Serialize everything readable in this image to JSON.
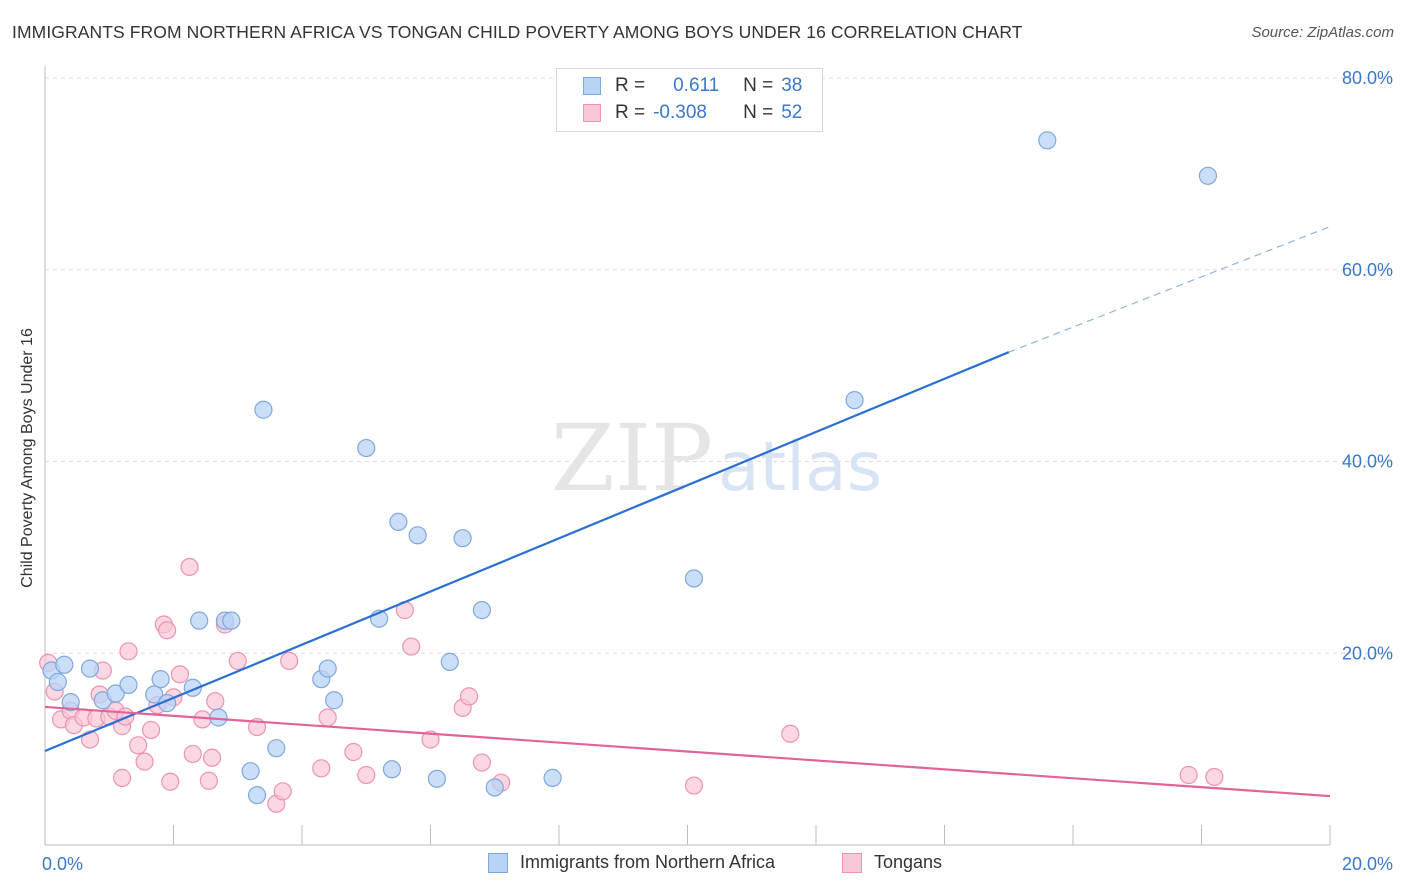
{
  "header": {
    "title": "IMMIGRANTS FROM NORTHERN AFRICA VS TONGAN CHILD POVERTY AMONG BOYS UNDER 16 CORRELATION CHART",
    "source": "Source: ZipAtlas.com"
  },
  "watermark": {
    "zip": "ZIP",
    "atlas": "atlas"
  },
  "legend_top": {
    "row1": {
      "r_label": "R =",
      "r_value": "0.611",
      "n_label": "N =",
      "n_value": "38"
    },
    "row2": {
      "r_label": "R =",
      "r_value": "-0.308",
      "n_label": "N =",
      "n_value": "52"
    }
  },
  "colors": {
    "blue_fill": "#b9d3f5",
    "blue_stroke": "#7fa8db",
    "blue_line": "#2a6fd1",
    "pink_fill": "#f8c6d6",
    "pink_stroke": "#ec93b1",
    "pink_line": "#e0649a",
    "tick_text": "#3a78c9"
  },
  "chart_data": {
    "type": "scatter",
    "title": "IMMIGRANTS FROM NORTHERN AFRICA VS TONGAN CHILD POVERTY AMONG BOYS UNDER 16 CORRELATION CHART",
    "xlabel": "",
    "ylabel": "Child Poverty Among Boys Under 16",
    "xlim": [
      0,
      20
    ],
    "ylim": [
      0,
      80
    ],
    "x_tick_labels": [
      "0.0%",
      "20.0%"
    ],
    "y_ticks": [
      20,
      40,
      60,
      80
    ],
    "y_tick_labels": [
      "20.0%",
      "40.0%",
      "60.0%",
      "80.0%"
    ],
    "grid": true,
    "legend": "bottom-center",
    "series": [
      {
        "name": "Immigrants from Northern Africa",
        "r": 0.611,
        "n": 38,
        "trend": {
          "x": [
            0,
            15
          ],
          "y": [
            9.8,
            51.4
          ],
          "dashed_to": [
            20,
            64.5
          ]
        },
        "points": [
          [
            0.1,
            18.2
          ],
          [
            0.2,
            17.0
          ],
          [
            0.3,
            18.8
          ],
          [
            0.7,
            18.4
          ],
          [
            0.4,
            14.9
          ],
          [
            0.9,
            15.1
          ],
          [
            1.1,
            15.8
          ],
          [
            1.3,
            16.7
          ],
          [
            1.8,
            17.3
          ],
          [
            1.7,
            15.7
          ],
          [
            2.3,
            16.4
          ],
          [
            1.9,
            14.8
          ],
          [
            2.4,
            23.4
          ],
          [
            2.8,
            23.4
          ],
          [
            2.9,
            23.4
          ],
          [
            2.7,
            13.3
          ],
          [
            3.4,
            45.4
          ],
          [
            3.2,
            7.7
          ],
          [
            3.6,
            10.1
          ],
          [
            4.3,
            17.3
          ],
          [
            4.4,
            18.4
          ],
          [
            4.5,
            15.1
          ],
          [
            5.0,
            41.4
          ],
          [
            5.2,
            23.6
          ],
          [
            5.5,
            33.7
          ],
          [
            5.8,
            32.3
          ],
          [
            5.4,
            7.9
          ],
          [
            6.3,
            19.1
          ],
          [
            6.5,
            32.0
          ],
          [
            6.8,
            24.5
          ],
          [
            7.0,
            6.0
          ],
          [
            7.9,
            7.0
          ],
          [
            10.1,
            27.8
          ],
          [
            12.6,
            46.4
          ],
          [
            15.6,
            73.5
          ],
          [
            18.1,
            69.8
          ],
          [
            3.3,
            5.2
          ],
          [
            6.1,
            6.9
          ]
        ]
      },
      {
        "name": "Tongans",
        "r": -0.308,
        "n": 52,
        "trend": {
          "x": [
            0,
            20
          ],
          "y": [
            14.4,
            5.1
          ]
        },
        "points": [
          [
            0.05,
            19.0
          ],
          [
            0.15,
            16.0
          ],
          [
            0.25,
            13.1
          ],
          [
            0.4,
            14.0
          ],
          [
            0.45,
            12.5
          ],
          [
            0.6,
            13.3
          ],
          [
            0.7,
            11.0
          ],
          [
            0.8,
            13.2
          ],
          [
            0.85,
            15.7
          ],
          [
            0.9,
            18.2
          ],
          [
            1.0,
            13.4
          ],
          [
            1.1,
            14.0
          ],
          [
            1.2,
            12.4
          ],
          [
            1.25,
            13.4
          ],
          [
            1.3,
            20.2
          ],
          [
            1.45,
            10.4
          ],
          [
            1.55,
            8.7
          ],
          [
            1.65,
            12.0
          ],
          [
            1.75,
            14.6
          ],
          [
            1.85,
            23.0
          ],
          [
            1.9,
            22.4
          ],
          [
            1.95,
            6.6
          ],
          [
            2.0,
            15.4
          ],
          [
            2.1,
            17.8
          ],
          [
            2.25,
            29.0
          ],
          [
            2.3,
            9.5
          ],
          [
            2.45,
            13.1
          ],
          [
            2.55,
            6.7
          ],
          [
            2.6,
            9.1
          ],
          [
            2.65,
            15.0
          ],
          [
            2.8,
            23.0
          ],
          [
            3.0,
            19.2
          ],
          [
            3.3,
            12.3
          ],
          [
            3.6,
            4.3
          ],
          [
            3.7,
            5.6
          ],
          [
            3.8,
            19.2
          ],
          [
            4.3,
            8.0
          ],
          [
            4.4,
            13.3
          ],
          [
            4.8,
            9.7
          ],
          [
            5.0,
            7.3
          ],
          [
            5.6,
            24.5
          ],
          [
            5.7,
            20.7
          ],
          [
            6.0,
            11.0
          ],
          [
            6.5,
            14.3
          ],
          [
            6.6,
            15.5
          ],
          [
            6.8,
            8.6
          ],
          [
            7.1,
            6.5
          ],
          [
            10.1,
            6.2
          ],
          [
            11.6,
            11.6
          ],
          [
            17.8,
            7.3
          ],
          [
            18.2,
            7.1
          ],
          [
            1.2,
            7.0
          ]
        ]
      }
    ]
  },
  "legend_bottom": {
    "blue_label": "Immigrants from Northern Africa",
    "pink_label": "Tongans"
  }
}
